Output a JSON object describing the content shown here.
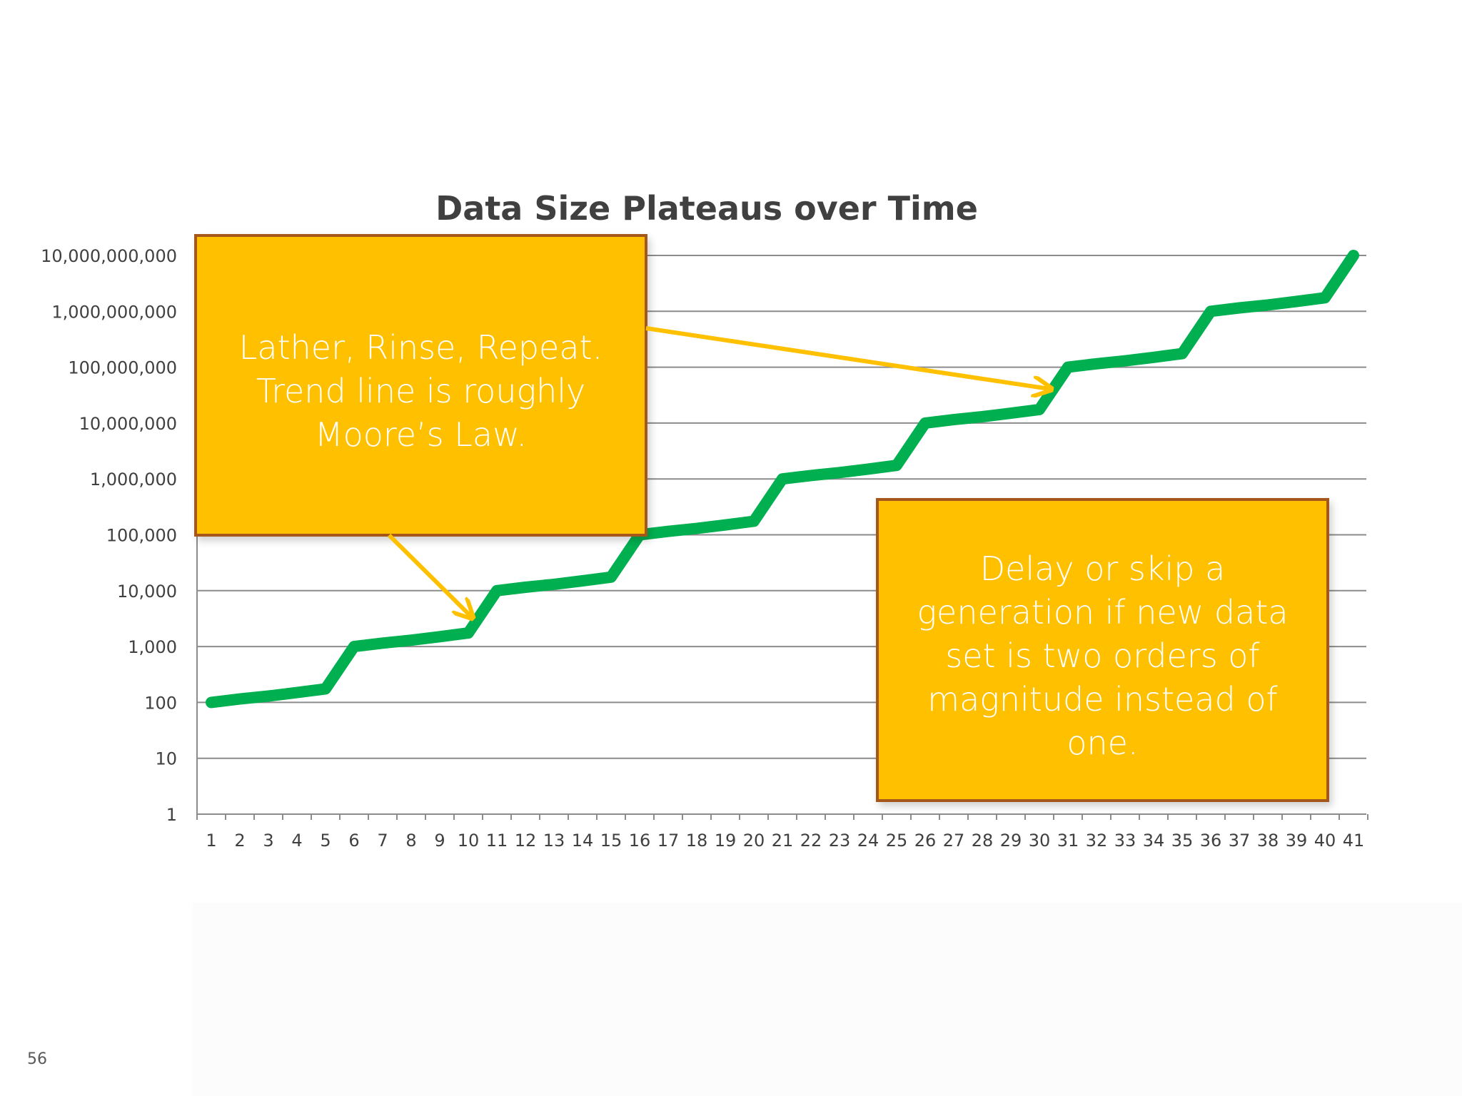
{
  "page_number": "56",
  "callouts": [
    {
      "text": "Lather, Rinse, Repeat.\nTrend line is roughly\nMoore’s Law."
    },
    {
      "text": "Delay or skip a\ngeneration if new data\nset is two orders of\nmagnitude instead of\none."
    }
  ],
  "colors": {
    "series": "#00b050",
    "callout_fill": "#ffc000",
    "callout_border": "#a5561a",
    "arrow": "#ffc000",
    "gridline": "#8c8c8c",
    "title": "#404040",
    "tick_label": "#404040"
  },
  "chart_data": {
    "type": "line",
    "title": "Data Size Plateaus over Time",
    "xlabel": "",
    "ylabel": "",
    "y_scale": "log",
    "ylim": [
      1,
      10000000000
    ],
    "grid": true,
    "legend": "none",
    "y_tick_labels": [
      "1",
      "10",
      "100",
      "1,000",
      "10,000",
      "100,000",
      "1,000,000",
      "10,000,000",
      "100,000,000",
      "1,000,000,000",
      "10,000,000,000"
    ],
    "x": [
      1,
      2,
      3,
      4,
      5,
      6,
      7,
      8,
      9,
      10,
      11,
      12,
      13,
      14,
      15,
      16,
      17,
      18,
      19,
      20,
      21,
      22,
      23,
      24,
      25,
      26,
      27,
      28,
      29,
      30,
      31,
      32,
      33,
      34,
      35,
      36,
      37,
      38,
      39,
      40,
      41
    ],
    "series": [
      {
        "values": [
          100,
          115,
          130,
          150,
          175,
          1000,
          1150,
          1300,
          1500,
          1750,
          10000,
          11500,
          13000,
          15000,
          17500,
          100000,
          115000,
          130000,
          150000,
          175000,
          1000000,
          1150000,
          1300000,
          1500000,
          1750000,
          10000000,
          11500000,
          13000000,
          15000000,
          17500000,
          100000000,
          115000000,
          130000000,
          150000000,
          175000000,
          1000000000,
          1150000000,
          1300000000,
          1500000000,
          1750000000,
          10000000000
        ]
      }
    ]
  }
}
